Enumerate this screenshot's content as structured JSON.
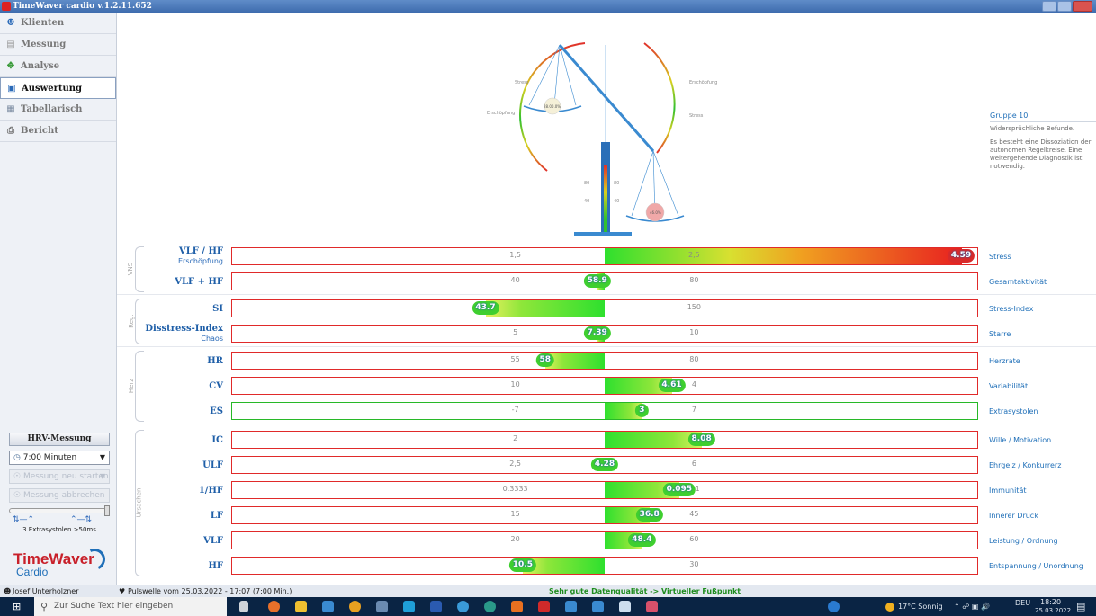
{
  "window": {
    "title": "TimeWaver cardio v.1.2.11.652"
  },
  "sidebar": {
    "items": [
      {
        "label": "Klienten",
        "icon": "person-icon",
        "active": false
      },
      {
        "label": "Messung",
        "icon": "clipboard-icon",
        "active": false
      },
      {
        "label": "Analyse",
        "icon": "analysis-icon",
        "active": false
      },
      {
        "label": "Auswertung",
        "icon": "monitor-icon",
        "active": true
      },
      {
        "label": "Tabellarisch",
        "icon": "table-icon",
        "active": false
      },
      {
        "label": "Bericht",
        "icon": "printer-icon",
        "active": false
      }
    ],
    "hrv": {
      "title": "HRV-Messung",
      "duration": "7:00 Minuten",
      "start_label": "Messung neu starten",
      "stop_label": "Messung abbrechen",
      "extras_label": "3 Extrasystolen >50ms"
    },
    "logo": {
      "line1": "TimeWaver",
      "line2": "Cardio"
    }
  },
  "balance": {
    "stress_left": "Stress",
    "exhaustion_left": "Erschöpfung",
    "exhaustion_right": "Erschöpfung",
    "stress_right": "Stress",
    "left_pan_value": "28.00.0%",
    "right_pan_value": "46.0%",
    "scale_80_left": "80",
    "scale_80_right": "80",
    "scale_40_left": "40",
    "scale_40_right": "40"
  },
  "group": {
    "title": "Gruppe 10",
    "line1": "Widersprüchliche Befunde.",
    "line2": "Es besteht eine Dissoziation der autonomen Regelkreise. Eine weitergehende Diagnostik ist notwendig."
  },
  "groups": [
    {
      "label": "VNS"
    },
    {
      "label": "Reg."
    },
    {
      "label": "Herz"
    },
    {
      "label": "Ursachen"
    }
  ],
  "metrics": [
    {
      "label": "VLF / HF",
      "sub": "Erschöpfung",
      "right": "Stress",
      "tick_left": "1,5",
      "tick_right": "2,5",
      "value": "4.59",
      "level": 0.98
    },
    {
      "label": "VLF + HF",
      "sub": "",
      "right": "Gesamtaktivität",
      "tick_left": "40",
      "tick_right": "80",
      "value": "58.9",
      "level": 0.49
    },
    {
      "label": "SI",
      "sub": "",
      "right": "Stress-Index",
      "tick_left": "",
      "tick_right": "150",
      "value": "43.7",
      "level": 0.34
    },
    {
      "label": "Disstress-Index",
      "sub": "Chaos",
      "right": "Starre",
      "tick_left": "5",
      "tick_right": "10",
      "value": "7.39",
      "level": 0.49
    },
    {
      "label": "HR",
      "sub": "",
      "right": "Herzrate",
      "tick_left": "55",
      "tick_right": "80",
      "value": "58",
      "level": 0.42
    },
    {
      "label": "CV",
      "sub": "",
      "right": "Variabilität",
      "tick_left": "10",
      "tick_right": "4",
      "value": "4.61",
      "level": 0.59
    },
    {
      "label": "ES",
      "sub": "",
      "right": "Extrasystolen",
      "tick_left": "-7",
      "tick_right": "7",
      "value": "3",
      "level": 0.55
    },
    {
      "label": "IC",
      "sub": "",
      "right": "Wille / Motivation",
      "tick_left": "2",
      "tick_right": "",
      "value": "8.08",
      "level": 0.63
    },
    {
      "label": "ULF",
      "sub": "",
      "right": "Ehrgeiz / Konkurrerz",
      "tick_left": "2,5",
      "tick_right": "6",
      "value": "4.28",
      "level": 0.5
    },
    {
      "label": "1/HF",
      "sub": "",
      "right": "Immunität",
      "tick_left": "0.3333",
      "tick_right": "0.1",
      "value": "0.095",
      "level": 0.6
    },
    {
      "label": "LF",
      "sub": "",
      "right": "Innerer Druck",
      "tick_left": "15",
      "tick_right": "45",
      "value": "36.8",
      "level": 0.56
    },
    {
      "label": "VLF",
      "sub": "",
      "right": "Leistung / Ordnung",
      "tick_left": "20",
      "tick_right": "60",
      "value": "48.4",
      "level": 0.55
    },
    {
      "label": "HF",
      "sub": "",
      "right": "Entspannung / Unordnung",
      "tick_left": "",
      "tick_right": "30",
      "value": "10.5",
      "level": 0.39
    }
  ],
  "statusbar": {
    "user": "Josef Unterholzner",
    "pulse": "Pulswelle vom 25.03.2022 - 17:07 (7:00 Min.)",
    "quality": "Sehr gute Datenqualität -> Virtueller Fußpunkt"
  },
  "taskbar": {
    "search_placeholder": "Zur Suche Text hier eingeben",
    "weather": "17°C Sonnig",
    "lang": "DEU",
    "time": "18:20",
    "date": "25.03.2022"
  }
}
